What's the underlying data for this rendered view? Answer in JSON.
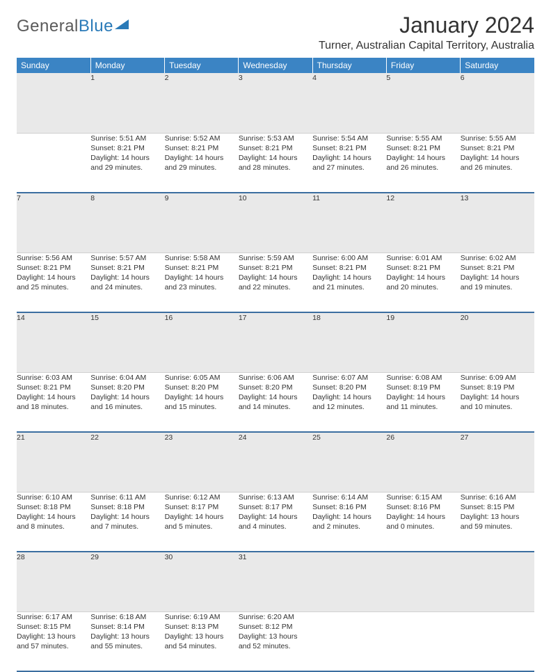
{
  "logo": {
    "general": "General",
    "blue": "Blue"
  },
  "title": {
    "month_year": "January 2024",
    "location": "Turner, Australian Capital Territory, Australia"
  },
  "headers": [
    "Sunday",
    "Monday",
    "Tuesday",
    "Wednesday",
    "Thursday",
    "Friday",
    "Saturday"
  ],
  "colors": {
    "header_bg": "#3b84c4",
    "daynum_bg": "#e9e9e9",
    "row_border": "#3b6ea0",
    "text": "#333333",
    "logo_gray": "#5a5a5a",
    "logo_blue": "#2a7ab8"
  },
  "weeks": [
    {
      "nums": [
        "",
        "1",
        "2",
        "3",
        "4",
        "5",
        "6"
      ],
      "cells": [
        {
          "sr": "",
          "ss": "",
          "d1": "",
          "d2": ""
        },
        {
          "sr": "Sunrise: 5:51 AM",
          "ss": "Sunset: 8:21 PM",
          "d1": "Daylight: 14 hours",
          "d2": "and 29 minutes."
        },
        {
          "sr": "Sunrise: 5:52 AM",
          "ss": "Sunset: 8:21 PM",
          "d1": "Daylight: 14 hours",
          "d2": "and 29 minutes."
        },
        {
          "sr": "Sunrise: 5:53 AM",
          "ss": "Sunset: 8:21 PM",
          "d1": "Daylight: 14 hours",
          "d2": "and 28 minutes."
        },
        {
          "sr": "Sunrise: 5:54 AM",
          "ss": "Sunset: 8:21 PM",
          "d1": "Daylight: 14 hours",
          "d2": "and 27 minutes."
        },
        {
          "sr": "Sunrise: 5:55 AM",
          "ss": "Sunset: 8:21 PM",
          "d1": "Daylight: 14 hours",
          "d2": "and 26 minutes."
        },
        {
          "sr": "Sunrise: 5:55 AM",
          "ss": "Sunset: 8:21 PM",
          "d1": "Daylight: 14 hours",
          "d2": "and 26 minutes."
        }
      ]
    },
    {
      "nums": [
        "7",
        "8",
        "9",
        "10",
        "11",
        "12",
        "13"
      ],
      "cells": [
        {
          "sr": "Sunrise: 5:56 AM",
          "ss": "Sunset: 8:21 PM",
          "d1": "Daylight: 14 hours",
          "d2": "and 25 minutes."
        },
        {
          "sr": "Sunrise: 5:57 AM",
          "ss": "Sunset: 8:21 PM",
          "d1": "Daylight: 14 hours",
          "d2": "and 24 minutes."
        },
        {
          "sr": "Sunrise: 5:58 AM",
          "ss": "Sunset: 8:21 PM",
          "d1": "Daylight: 14 hours",
          "d2": "and 23 minutes."
        },
        {
          "sr": "Sunrise: 5:59 AM",
          "ss": "Sunset: 8:21 PM",
          "d1": "Daylight: 14 hours",
          "d2": "and 22 minutes."
        },
        {
          "sr": "Sunrise: 6:00 AM",
          "ss": "Sunset: 8:21 PM",
          "d1": "Daylight: 14 hours",
          "d2": "and 21 minutes."
        },
        {
          "sr": "Sunrise: 6:01 AM",
          "ss": "Sunset: 8:21 PM",
          "d1": "Daylight: 14 hours",
          "d2": "and 20 minutes."
        },
        {
          "sr": "Sunrise: 6:02 AM",
          "ss": "Sunset: 8:21 PM",
          "d1": "Daylight: 14 hours",
          "d2": "and 19 minutes."
        }
      ]
    },
    {
      "nums": [
        "14",
        "15",
        "16",
        "17",
        "18",
        "19",
        "20"
      ],
      "cells": [
        {
          "sr": "Sunrise: 6:03 AM",
          "ss": "Sunset: 8:21 PM",
          "d1": "Daylight: 14 hours",
          "d2": "and 18 minutes."
        },
        {
          "sr": "Sunrise: 6:04 AM",
          "ss": "Sunset: 8:20 PM",
          "d1": "Daylight: 14 hours",
          "d2": "and 16 minutes."
        },
        {
          "sr": "Sunrise: 6:05 AM",
          "ss": "Sunset: 8:20 PM",
          "d1": "Daylight: 14 hours",
          "d2": "and 15 minutes."
        },
        {
          "sr": "Sunrise: 6:06 AM",
          "ss": "Sunset: 8:20 PM",
          "d1": "Daylight: 14 hours",
          "d2": "and 14 minutes."
        },
        {
          "sr": "Sunrise: 6:07 AM",
          "ss": "Sunset: 8:20 PM",
          "d1": "Daylight: 14 hours",
          "d2": "and 12 minutes."
        },
        {
          "sr": "Sunrise: 6:08 AM",
          "ss": "Sunset: 8:19 PM",
          "d1": "Daylight: 14 hours",
          "d2": "and 11 minutes."
        },
        {
          "sr": "Sunrise: 6:09 AM",
          "ss": "Sunset: 8:19 PM",
          "d1": "Daylight: 14 hours",
          "d2": "and 10 minutes."
        }
      ]
    },
    {
      "nums": [
        "21",
        "22",
        "23",
        "24",
        "25",
        "26",
        "27"
      ],
      "cells": [
        {
          "sr": "Sunrise: 6:10 AM",
          "ss": "Sunset: 8:18 PM",
          "d1": "Daylight: 14 hours",
          "d2": "and 8 minutes."
        },
        {
          "sr": "Sunrise: 6:11 AM",
          "ss": "Sunset: 8:18 PM",
          "d1": "Daylight: 14 hours",
          "d2": "and 7 minutes."
        },
        {
          "sr": "Sunrise: 6:12 AM",
          "ss": "Sunset: 8:17 PM",
          "d1": "Daylight: 14 hours",
          "d2": "and 5 minutes."
        },
        {
          "sr": "Sunrise: 6:13 AM",
          "ss": "Sunset: 8:17 PM",
          "d1": "Daylight: 14 hours",
          "d2": "and 4 minutes."
        },
        {
          "sr": "Sunrise: 6:14 AM",
          "ss": "Sunset: 8:16 PM",
          "d1": "Daylight: 14 hours",
          "d2": "and 2 minutes."
        },
        {
          "sr": "Sunrise: 6:15 AM",
          "ss": "Sunset: 8:16 PM",
          "d1": "Daylight: 14 hours",
          "d2": "and 0 minutes."
        },
        {
          "sr": "Sunrise: 6:16 AM",
          "ss": "Sunset: 8:15 PM",
          "d1": "Daylight: 13 hours",
          "d2": "and 59 minutes."
        }
      ]
    },
    {
      "nums": [
        "28",
        "29",
        "30",
        "31",
        "",
        "",
        ""
      ],
      "cells": [
        {
          "sr": "Sunrise: 6:17 AM",
          "ss": "Sunset: 8:15 PM",
          "d1": "Daylight: 13 hours",
          "d2": "and 57 minutes."
        },
        {
          "sr": "Sunrise: 6:18 AM",
          "ss": "Sunset: 8:14 PM",
          "d1": "Daylight: 13 hours",
          "d2": "and 55 minutes."
        },
        {
          "sr": "Sunrise: 6:19 AM",
          "ss": "Sunset: 8:13 PM",
          "d1": "Daylight: 13 hours",
          "d2": "and 54 minutes."
        },
        {
          "sr": "Sunrise: 6:20 AM",
          "ss": "Sunset: 8:12 PM",
          "d1": "Daylight: 13 hours",
          "d2": "and 52 minutes."
        },
        {
          "sr": "",
          "ss": "",
          "d1": "",
          "d2": ""
        },
        {
          "sr": "",
          "ss": "",
          "d1": "",
          "d2": ""
        },
        {
          "sr": "",
          "ss": "",
          "d1": "",
          "d2": ""
        }
      ]
    }
  ]
}
